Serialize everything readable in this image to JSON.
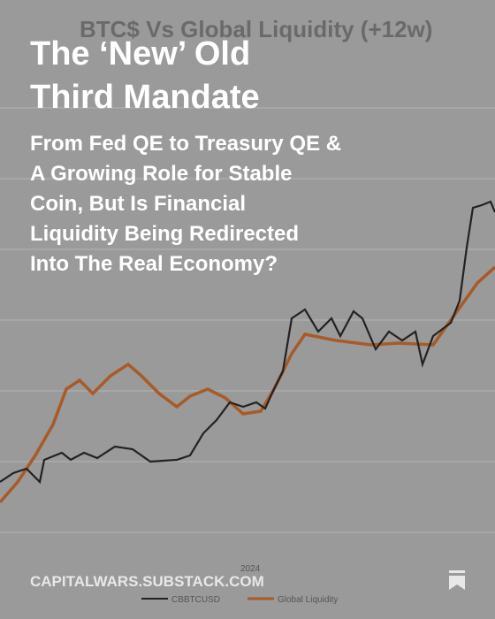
{
  "background_chart": {
    "title": "BTC$ Vs Global Liquidity (+12w)",
    "x_label": "2024",
    "legend": [
      "CBBTCUSD",
      "Global Liquidity"
    ]
  },
  "card": {
    "title_lines": [
      "The ‘New’ Old",
      "Third Mandate"
    ],
    "subtitle_lines": [
      "From Fed QE to Treasury QE &",
      "A Growing Role for Stable",
      "Coin, But Is Financial",
      "Liquidity Being Redirected",
      "Into The Real Economy?"
    ],
    "footer": "CAPITALWARS.SUBSTACK.COM"
  }
}
